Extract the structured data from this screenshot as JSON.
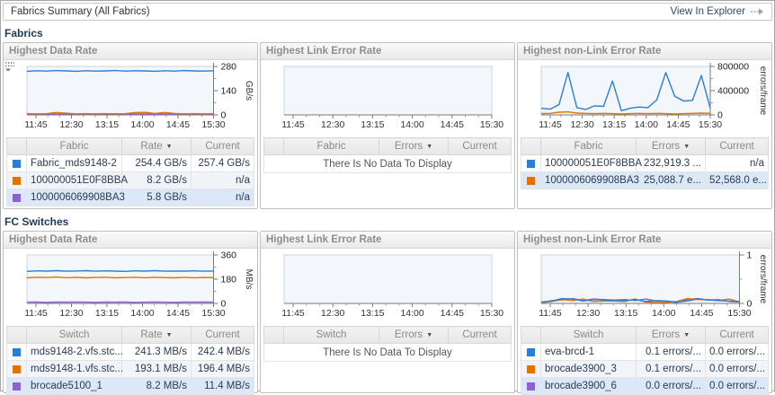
{
  "header": {
    "title": "Fabrics Summary (All Fabrics)",
    "action_label": "View In Explorer"
  },
  "colors": {
    "blue": "#2a7fd4",
    "orange": "#e17300",
    "purple": "#8a63cc"
  },
  "x_labels": [
    "11:45",
    "12:30",
    "13:15",
    "14:00",
    "14:45",
    "15:30"
  ],
  "sections": [
    {
      "title": "Fabrics",
      "panels": [
        {
          "title": "Highest Data Rate",
          "has_options_icon": true,
          "chart_data": {
            "type": "line",
            "x": [
              "11:45",
              "12:30",
              "13:15",
              "14:00",
              "14:45",
              "15:30"
            ],
            "ylim": [
              0,
              280
            ],
            "yticks": [
              0,
              140,
              280
            ],
            "ylabel": "GB/s",
            "series": [
              {
                "name": "Fabric_mds9148-2",
                "color": "#2a7fd4",
                "values": [
                  252,
                  255,
                  253,
                  256,
                  254,
                  252,
                  255,
                  253,
                  254,
                  256,
                  253,
                  255,
                  254,
                  252,
                  255,
                  253,
                  256,
                  254,
                  253,
                  255
                ]
              },
              {
                "name": "100000051E0F8BBA",
                "color": "#e17300",
                "values": [
                  7,
                  6,
                  7,
                  14,
                  10,
                  6,
                  7,
                  6,
                  7,
                  6,
                  7,
                  13,
                  15,
                  8,
                  14,
                  9,
                  6,
                  7,
                  6,
                  7
                ]
              },
              {
                "name": "1000006069908BA3",
                "color": "#8a63cc",
                "values": [
                  5,
                  5,
                  6,
                  5,
                  5,
                  5,
                  6,
                  5,
                  5,
                  6,
                  5,
                  5,
                  6,
                  5,
                  5,
                  5,
                  6,
                  5,
                  5,
                  5
                ]
              }
            ]
          },
          "table": {
            "columns": [
              "Fabric",
              "Rate",
              "Current"
            ],
            "sort_column": "Rate",
            "empty_text": "",
            "rows": [
              {
                "swatch": "#2a7fd4",
                "name": "Fabric_mds9148-2",
                "value": "254.4 GB/s",
                "current": "257.4 GB/s"
              },
              {
                "swatch": "#e17300",
                "name": "100000051E0F8BBA",
                "value": "8.2 GB/s",
                "current": "n/a"
              },
              {
                "swatch": "#8a63cc",
                "name": "1000006069908BA3",
                "value": "5.8 GB/s",
                "current": "n/a"
              }
            ]
          }
        },
        {
          "title": "Highest Link Error Rate",
          "has_options_icon": false,
          "chart_data": {
            "type": "line",
            "x": [
              "11:45",
              "12:30",
              "13:15",
              "14:00",
              "14:45",
              "15:30"
            ],
            "ylim": [
              0,
              1
            ],
            "yticks": [],
            "ylabel": "",
            "series": []
          },
          "table": {
            "columns": [
              "Fabric",
              "Errors",
              "Current"
            ],
            "sort_column": "Errors",
            "empty_text": "There Is No Data To Display",
            "rows": []
          }
        },
        {
          "title": "Highest non-Link Error Rate",
          "has_options_icon": false,
          "chart_data": {
            "type": "line",
            "x": [
              "11:45",
              "12:30",
              "13:15",
              "14:00",
              "14:45",
              "15:30"
            ],
            "ylim": [
              0,
              800000
            ],
            "yticks": [
              0,
              400000,
              800000
            ],
            "ylabel": "errors/frame",
            "series": [
              {
                "name": "100000051E0F8BBA",
                "color": "#2a7fd4",
                "values": [
                  110000,
                  95000,
                  170000,
                  700000,
                  120000,
                  90000,
                  150000,
                  140000,
                  560000,
                  70000,
                  110000,
                  130000,
                  120000,
                  250000,
                  700000,
                  310000,
                  230000,
                  240000,
                  650000,
                  110000
                ]
              },
              {
                "name": "1000006069908BA3",
                "color": "#e17300",
                "values": [
                  20000,
                  25000,
                  45000,
                  50000,
                  30000,
                  25000,
                  20000,
                  25000,
                  20000,
                  15000,
                  20000,
                  25000,
                  20000,
                  25000,
                  20000,
                  15000,
                  20000,
                  25000,
                  30000,
                  25000
                ]
              }
            ]
          },
          "table": {
            "columns": [
              "Fabric",
              "Errors",
              "Current"
            ],
            "sort_column": "Errors",
            "empty_text": "",
            "rows": [
              {
                "swatch": "#2a7fd4",
                "name": "100000051E0F8BBA",
                "value": "232,919.3 ...",
                "current": "n/a"
              },
              {
                "swatch": "#e17300",
                "name": "1000006069908BA3",
                "value": "25,088.7 e...",
                "current": "52,568.0 e..."
              }
            ]
          }
        }
      ]
    },
    {
      "title": "FC Switches",
      "panels": [
        {
          "title": "Highest Data Rate",
          "has_options_icon": false,
          "chart_data": {
            "type": "line",
            "x": [
              "11:45",
              "12:30",
              "13:15",
              "14:00",
              "14:45",
              "15:30"
            ],
            "ylim": [
              0,
              360
            ],
            "yticks": [
              0,
              180,
              360
            ],
            "ylabel": "MB/s",
            "series": [
              {
                "name": "mds9148-2.vfs.stc...",
                "color": "#2a7fd4",
                "values": [
                  238,
                  242,
                  240,
                  243,
                  239,
                  241,
                  243,
                  239,
                  242,
                  240,
                  238,
                  242,
                  240,
                  243,
                  239,
                  241,
                  240,
                  242,
                  239,
                  241
                ]
              },
              {
                "name": "mds9148-1.vfs.stc...",
                "color": "#e17300",
                "values": [
                  190,
                  195,
                  192,
                  196,
                  191,
                  194,
                  190,
                  193,
                  195,
                  190,
                  192,
                  195,
                  191,
                  194,
                  192,
                  190,
                  194,
                  191,
                  193,
                  192
                ]
              },
              {
                "name": "brocade5100_1",
                "color": "#8a63cc",
                "values": [
                  9,
                  10,
                  8,
                  10,
                  9,
                  10,
                  9,
                  8,
                  10,
                  9,
                  10,
                  8,
                  9,
                  10,
                  9,
                  8,
                  10,
                  9,
                  10,
                  9
                ]
              }
            ]
          },
          "table": {
            "columns": [
              "Switch",
              "Rate",
              "Current"
            ],
            "sort_column": "Rate",
            "empty_text": "",
            "rows": [
              {
                "swatch": "#2a7fd4",
                "name": "mds9148-2.vfs.stc...",
                "value": "241.3 MB/s",
                "current": "242.4 MB/s"
              },
              {
                "swatch": "#e17300",
                "name": "mds9148-1.vfs.stc...",
                "value": "193.1 MB/s",
                "current": "196.4 MB/s"
              },
              {
                "swatch": "#8a63cc",
                "name": "brocade5100_1",
                "value": "8.2 MB/s",
                "current": "11.4 MB/s"
              }
            ]
          }
        },
        {
          "title": "Highest Link Error Rate",
          "has_options_icon": false,
          "chart_data": {
            "type": "line",
            "x": [
              "11:45",
              "12:30",
              "13:15",
              "14:00",
              "14:45",
              "15:30"
            ],
            "ylim": [
              0,
              1
            ],
            "yticks": [],
            "ylabel": "",
            "series": []
          },
          "table": {
            "columns": [
              "Switch",
              "Errors",
              "Current"
            ],
            "sort_column": "Errors",
            "empty_text": "There Is No Data To Display",
            "rows": []
          }
        },
        {
          "title": "Highest non-Link Error Rate",
          "has_options_icon": false,
          "chart_data": {
            "type": "line",
            "x": [
              "11:45",
              "12:30",
              "13:15",
              "14:00",
              "14:45",
              "15:30"
            ],
            "ylim": [
              0,
              1
            ],
            "yticks": [
              0,
              1
            ],
            "ylabel": "errors/frame",
            "series": [
              {
                "name": "eva-brcd-1",
                "color": "#2a7fd4",
                "values": [
                  0.03,
                  0.05,
                  0.1,
                  0.09,
                  0.05,
                  0.08,
                  0.07,
                  0.06,
                  0.06,
                  0.08,
                  0.04,
                  0.06,
                  0.05,
                  0.03,
                  0.05,
                  0.09,
                  0.07,
                  0.06,
                  0.05,
                  0.04
                ]
              },
              {
                "name": "brocade3900_3",
                "color": "#e17300",
                "values": [
                  0.02,
                  0.04,
                  0.08,
                  0.06,
                  0.09,
                  0.04,
                  0.05,
                  0.05,
                  0.04,
                  0.09,
                  0.03,
                  0.02,
                  0.02,
                  0.04,
                  0.1,
                  0.08,
                  0.08,
                  0.06,
                  0.09,
                  0.03
                ]
              },
              {
                "name": "brocade3900_6",
                "color": "#8a63cc",
                "values": [
                  0.01,
                  0.06,
                  0.07,
                  0.1,
                  0.06,
                  0.09,
                  0.08,
                  0.07,
                  0.08,
                  0.06,
                  0.09,
                  0.05,
                  0.04,
                  0.02,
                  0.08,
                  0.1,
                  0.07,
                  0.08,
                  0.04,
                  0.03
                ]
              }
            ]
          },
          "table": {
            "columns": [
              "Switch",
              "Errors",
              "Current"
            ],
            "sort_column": "Errors",
            "empty_text": "",
            "rows": [
              {
                "swatch": "#2a7fd4",
                "name": "eva-brcd-1",
                "value": "0.1 errors/...",
                "current": "0.0 errors/..."
              },
              {
                "swatch": "#e17300",
                "name": "brocade3900_3",
                "value": "0.1 errors/...",
                "current": "0.0 errors/..."
              },
              {
                "swatch": "#8a63cc",
                "name": "brocade3900_6",
                "value": "0.0 errors/...",
                "current": "0.0 errors/..."
              }
            ]
          }
        }
      ]
    }
  ]
}
